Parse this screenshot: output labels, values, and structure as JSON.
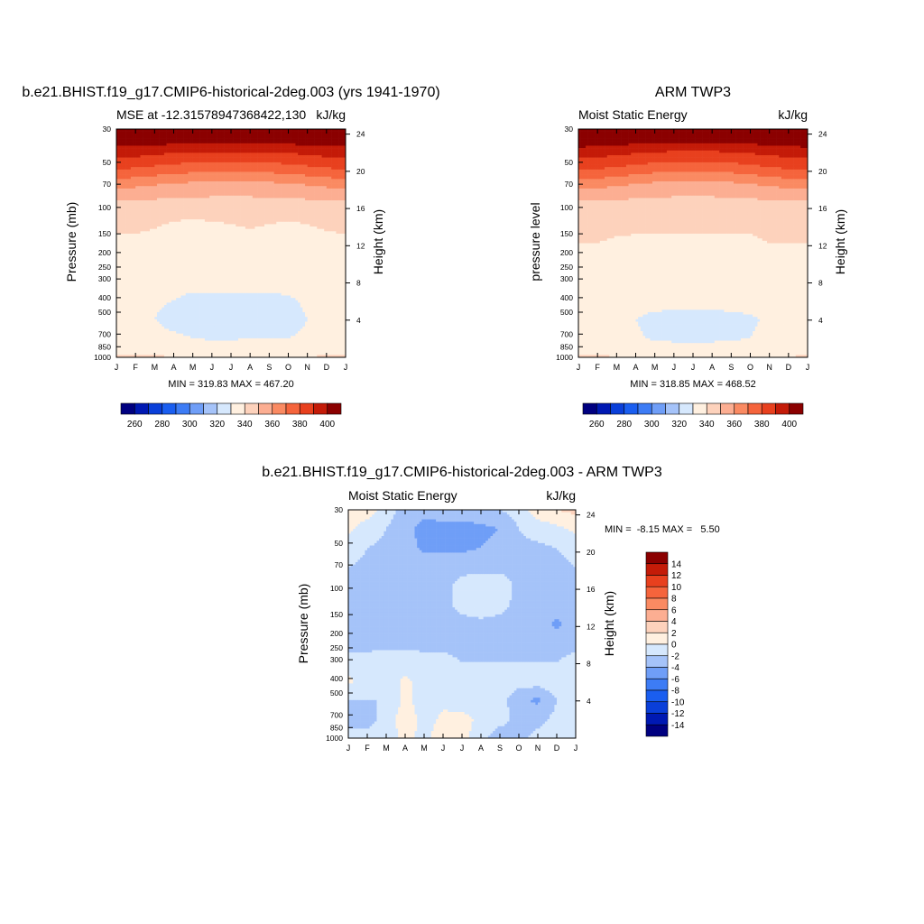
{
  "months": [
    "J",
    "F",
    "M",
    "A",
    "M",
    "J",
    "J",
    "A",
    "S",
    "O",
    "N",
    "D",
    "J"
  ],
  "pressure_ticks": [
    "30",
    "50",
    "70",
    "100",
    "150",
    "200",
    "250",
    "300",
    "400",
    "500",
    "700",
    "850",
    "1000"
  ],
  "height_ticks": [
    "24",
    "20",
    "16",
    "12",
    "8",
    "4"
  ],
  "height_axis_label": "Height (km)",
  "colors": {
    "mse": [
      "#000080",
      "#0019b3",
      "#0a3fd9",
      "#1a5ef0",
      "#3d7cf5",
      "#6f9ef7",
      "#a5c3f9",
      "#d6e8fd",
      "#fff0e0",
      "#fdd2bc",
      "#fcae92",
      "#fa8a62",
      "#f5643c",
      "#e8401e",
      "#c41b08",
      "#8b0000"
    ],
    "diff": [
      "#000080",
      "#0019b3",
      "#0a3fd9",
      "#1a5ef0",
      "#3d7cf5",
      "#6f9ef7",
      "#a5c3f9",
      "#d6e8fd",
      "#fff0e0",
      "#fdd2bc",
      "#fcae92",
      "#fa8a62",
      "#f5643c",
      "#e8401e",
      "#c41b08",
      "#8b0000"
    ]
  },
  "panel_model": {
    "title": "b.e21.BHIST.f19_g17.CMIP6-historical-2deg.003 (yrs 1941-1970)",
    "left_string": "MSE at -12.31578947368422,130",
    "right_string": "kJ/kg",
    "ylabel": "Pressure (mb)",
    "min_max": "MIN = 319.83 MAX = 467.20"
  },
  "panel_obs": {
    "title": "ARM TWP3",
    "left_string": "Moist Static Energy",
    "right_string": "kJ/kg",
    "ylabel": "pressure level",
    "min_max": "MIN = 318.85 MAX = 468.52"
  },
  "panel_diff": {
    "title": "b.e21.BHIST.f19_g17.CMIP6-historical-2deg.003 - ARM TWP3",
    "left_string": "Moist Static Energy",
    "right_string": "kJ/kg",
    "ylabel": "Pressure (mb)",
    "min_max": "MIN =  -8.15 MAX =   5.50"
  },
  "chart_data": [
    {
      "type": "heatmap",
      "title": "b.e21.BHIST.f19_g17.CMIP6-historical-2deg.003 (yrs 1941-1970)",
      "ylabel": "Pressure (mb)",
      "y2label": "Height (km)",
      "x": [
        "J",
        "F",
        "M",
        "A",
        "M",
        "J",
        "J",
        "A",
        "S",
        "O",
        "N",
        "D",
        "J"
      ],
      "y_pressure": [
        30,
        50,
        70,
        100,
        150,
        200,
        250,
        300,
        400,
        500,
        700,
        850,
        1000
      ],
      "z_contour_levels": [
        260,
        270,
        280,
        290,
        300,
        310,
        320,
        330,
        340,
        350,
        360,
        370,
        380,
        390,
        400
      ],
      "z_rows_kJkg": [
        [
          420,
          420,
          420,
          420,
          420,
          420,
          420,
          420,
          420,
          420,
          420,
          420,
          420
        ],
        [
          398,
          398,
          396,
          395,
          394,
          394,
          394,
          394,
          394,
          395,
          396,
          398,
          398
        ],
        [
          382,
          381,
          379,
          377,
          376,
          375,
          375,
          375,
          376,
          377,
          379,
          381,
          382
        ],
        [
          362,
          361,
          359,
          357,
          356,
          355,
          355,
          355,
          356,
          357,
          359,
          361,
          362
        ],
        [
          346,
          346,
          346,
          346,
          346,
          346,
          346,
          346,
          346,
          346,
          346,
          346,
          346
        ],
        [
          342,
          342,
          341,
          339,
          338,
          339,
          340,
          341,
          340,
          339,
          340,
          341,
          342
        ],
        [
          338,
          338,
          337,
          336,
          336,
          337,
          337,
          337,
          337,
          336,
          337,
          338,
          338
        ],
        [
          335,
          335,
          334,
          333,
          333,
          333,
          333,
          333,
          333,
          333,
          333,
          334,
          335
        ],
        [
          333,
          333,
          333,
          333,
          333,
          333,
          333,
          333,
          333,
          333,
          333,
          333,
          333
        ],
        [
          331,
          331,
          331,
          330,
          328,
          328,
          328,
          328,
          328,
          329,
          331,
          331,
          331
        ],
        [
          331,
          331,
          330,
          328,
          327,
          327,
          327,
          327,
          327,
          328,
          330,
          331,
          331
        ],
        [
          332,
          332,
          332,
          331,
          330,
          329,
          329,
          330,
          330,
          330,
          331,
          332,
          332
        ],
        [
          341,
          341,
          341,
          340,
          339,
          338,
          338,
          339,
          339,
          339,
          340,
          341,
          341
        ]
      ],
      "min": 319.83,
      "max": 467.2,
      "colorbar_labels": [
        "260",
        "280",
        "300",
        "320",
        "340",
        "360",
        "380",
        "400"
      ]
    },
    {
      "type": "heatmap",
      "title": "ARM TWP3",
      "ylabel": "pressure level",
      "y2label": "Height (km)",
      "x": [
        "J",
        "F",
        "M",
        "A",
        "M",
        "J",
        "J",
        "A",
        "S",
        "O",
        "N",
        "D",
        "J"
      ],
      "y_pressure": [
        30,
        50,
        70,
        100,
        150,
        200,
        250,
        300,
        400,
        500,
        700,
        850,
        1000
      ],
      "z_contour_levels": [
        260,
        270,
        280,
        290,
        300,
        310,
        320,
        330,
        340,
        350,
        360,
        370,
        380,
        390,
        400
      ],
      "z_rows_kJkg": [
        [
          420,
          420,
          420,
          420,
          420,
          420,
          420,
          420,
          420,
          420,
          420,
          420,
          420
        ],
        [
          399,
          398,
          396,
          395,
          394,
          393,
          393,
          393,
          394,
          395,
          396,
          398,
          399
        ],
        [
          383,
          382,
          380,
          378,
          376,
          375,
          375,
          375,
          376,
          378,
          380,
          382,
          383
        ],
        [
          363,
          362,
          360,
          358,
          356,
          355,
          355,
          355,
          356,
          358,
          360,
          362,
          363
        ],
        [
          347,
          347,
          346,
          346,
          346,
          346,
          346,
          346,
          346,
          346,
          346,
          347,
          347
        ],
        [
          343,
          342,
          342,
          341,
          341,
          341,
          341,
          341,
          341,
          341,
          342,
          342,
          343
        ],
        [
          340,
          340,
          339,
          339,
          339,
          339,
          339,
          339,
          339,
          339,
          340,
          340,
          340
        ],
        [
          339,
          338,
          337,
          336,
          336,
          336,
          336,
          336,
          336,
          337,
          338,
          338,
          339
        ],
        [
          338,
          337,
          336,
          334,
          333,
          333,
          333,
          333,
          333,
          335,
          336,
          337,
          338
        ],
        [
          333,
          333,
          333,
          333,
          333,
          333,
          333,
          333,
          333,
          333,
          333,
          333,
          333
        ],
        [
          333,
          333,
          332,
          330,
          328,
          327,
          327,
          327,
          328,
          329,
          331,
          332,
          333
        ],
        [
          335,
          334,
          333,
          331,
          329,
          328,
          328,
          328,
          329,
          330,
          332,
          334,
          335
        ],
        [
          341,
          341,
          340,
          339,
          338,
          338,
          338,
          338,
          338,
          338,
          339,
          340,
          341
        ]
      ],
      "min": 318.85,
      "max": 468.52,
      "colorbar_labels": [
        "260",
        "280",
        "300",
        "320",
        "340",
        "360",
        "380",
        "400"
      ]
    },
    {
      "type": "heatmap",
      "title": "b.e21.BHIST.f19_g17.CMIP6-historical-2deg.003 - ARM TWP3",
      "ylabel": "Pressure (mb)",
      "y2label": "Height (km)",
      "x": [
        "J",
        "F",
        "M",
        "A",
        "M",
        "J",
        "J",
        "A",
        "S",
        "O",
        "N",
        "D",
        "J"
      ],
      "y_pressure": [
        30,
        50,
        70,
        100,
        150,
        200,
        250,
        300,
        400,
        500,
        700,
        850,
        1000
      ],
      "z_contour_levels": [
        -14,
        -12,
        -10,
        -8,
        -6,
        -4,
        -2,
        0,
        2,
        4,
        6,
        8,
        10,
        12,
        14
      ],
      "z_rows_kJkg": [
        [
          1.5,
          1.0,
          -1.0,
          -3.0,
          -3.0,
          -2.5,
          -2.5,
          -2.5,
          -2.0,
          -1.0,
          1.0,
          2.0,
          2.5
        ],
        [
          0.5,
          -1.0,
          -2.0,
          -3.0,
          -5.0,
          -5.0,
          -5.0,
          -4.5,
          -4.0,
          -2.0,
          -1.0,
          -0.5,
          0.5
        ],
        [
          -1.0,
          -2.0,
          -2.5,
          -3.0,
          -4.5,
          -4.5,
          -4.5,
          -4.0,
          -3.5,
          -2.5,
          -2.5,
          -2.0,
          -1.5
        ],
        [
          -2.0,
          -2.5,
          -2.5,
          -2.5,
          -2.5,
          -2.5,
          -2.5,
          -2.5,
          -2.5,
          -2.5,
          -2.5,
          -2.5,
          -2.0
        ],
        [
          -2.5,
          -2.5,
          -2.5,
          -2.5,
          -2.5,
          -2.5,
          -1.5,
          -1.0,
          -1.0,
          -2.5,
          -2.5,
          -2.5,
          -2.5
        ],
        [
          -2.5,
          -2.5,
          -2.5,
          -2.5,
          -2.5,
          -2.5,
          -1.5,
          -0.8,
          -1.5,
          -2.5,
          -3.0,
          -3.0,
          -2.5
        ],
        [
          -2.5,
          -2.5,
          -2.5,
          -2.5,
          -2.5,
          -2.5,
          -2.5,
          -2.5,
          -2.5,
          -2.5,
          -2.5,
          -4.5,
          -2.5
        ],
        [
          -2.5,
          -2.5,
          -2.5,
          -2.5,
          -2.5,
          -2.5,
          -2.5,
          -2.5,
          -2.5,
          -2.5,
          -2.5,
          -2.5,
          -2.5
        ],
        [
          -1.5,
          -1.5,
          -1.0,
          -1.0,
          -1.5,
          -1.5,
          -2.0,
          -2.0,
          -2.0,
          -2.0,
          -2.0,
          -2.0,
          -1.5
        ],
        [
          0.5,
          -1.0,
          -1.5,
          0.5,
          -1.0,
          -1.5,
          -1.5,
          -1.5,
          -1.0,
          -1.0,
          -1.0,
          -0.5,
          -0.5
        ],
        [
          -2.0,
          -2.0,
          -2.0,
          0.5,
          -1.0,
          -0.5,
          -1.5,
          -1.5,
          -1.0,
          -3.5,
          -4.5,
          -2.0,
          -1.0
        ],
        [
          -2.5,
          -2.5,
          -1.5,
          1.5,
          -1.0,
          0.5,
          0.8,
          -0.5,
          -1.0,
          -3.0,
          -2.5,
          -1.5,
          -1.0
        ],
        [
          -1.5,
          -1.5,
          -1.0,
          0.5,
          -0.5,
          1.0,
          0.5,
          -1.0,
          -3.5,
          -2.5,
          -1.5,
          -1.0,
          -1.0
        ]
      ],
      "min": -8.15,
      "max": 5.5,
      "colorbar_labels": [
        "14",
        "12",
        "10",
        "8",
        "6",
        "4",
        "2",
        "0",
        "-2",
        "-4",
        "-6",
        "-8",
        "-10",
        "-12",
        "-14"
      ]
    }
  ]
}
